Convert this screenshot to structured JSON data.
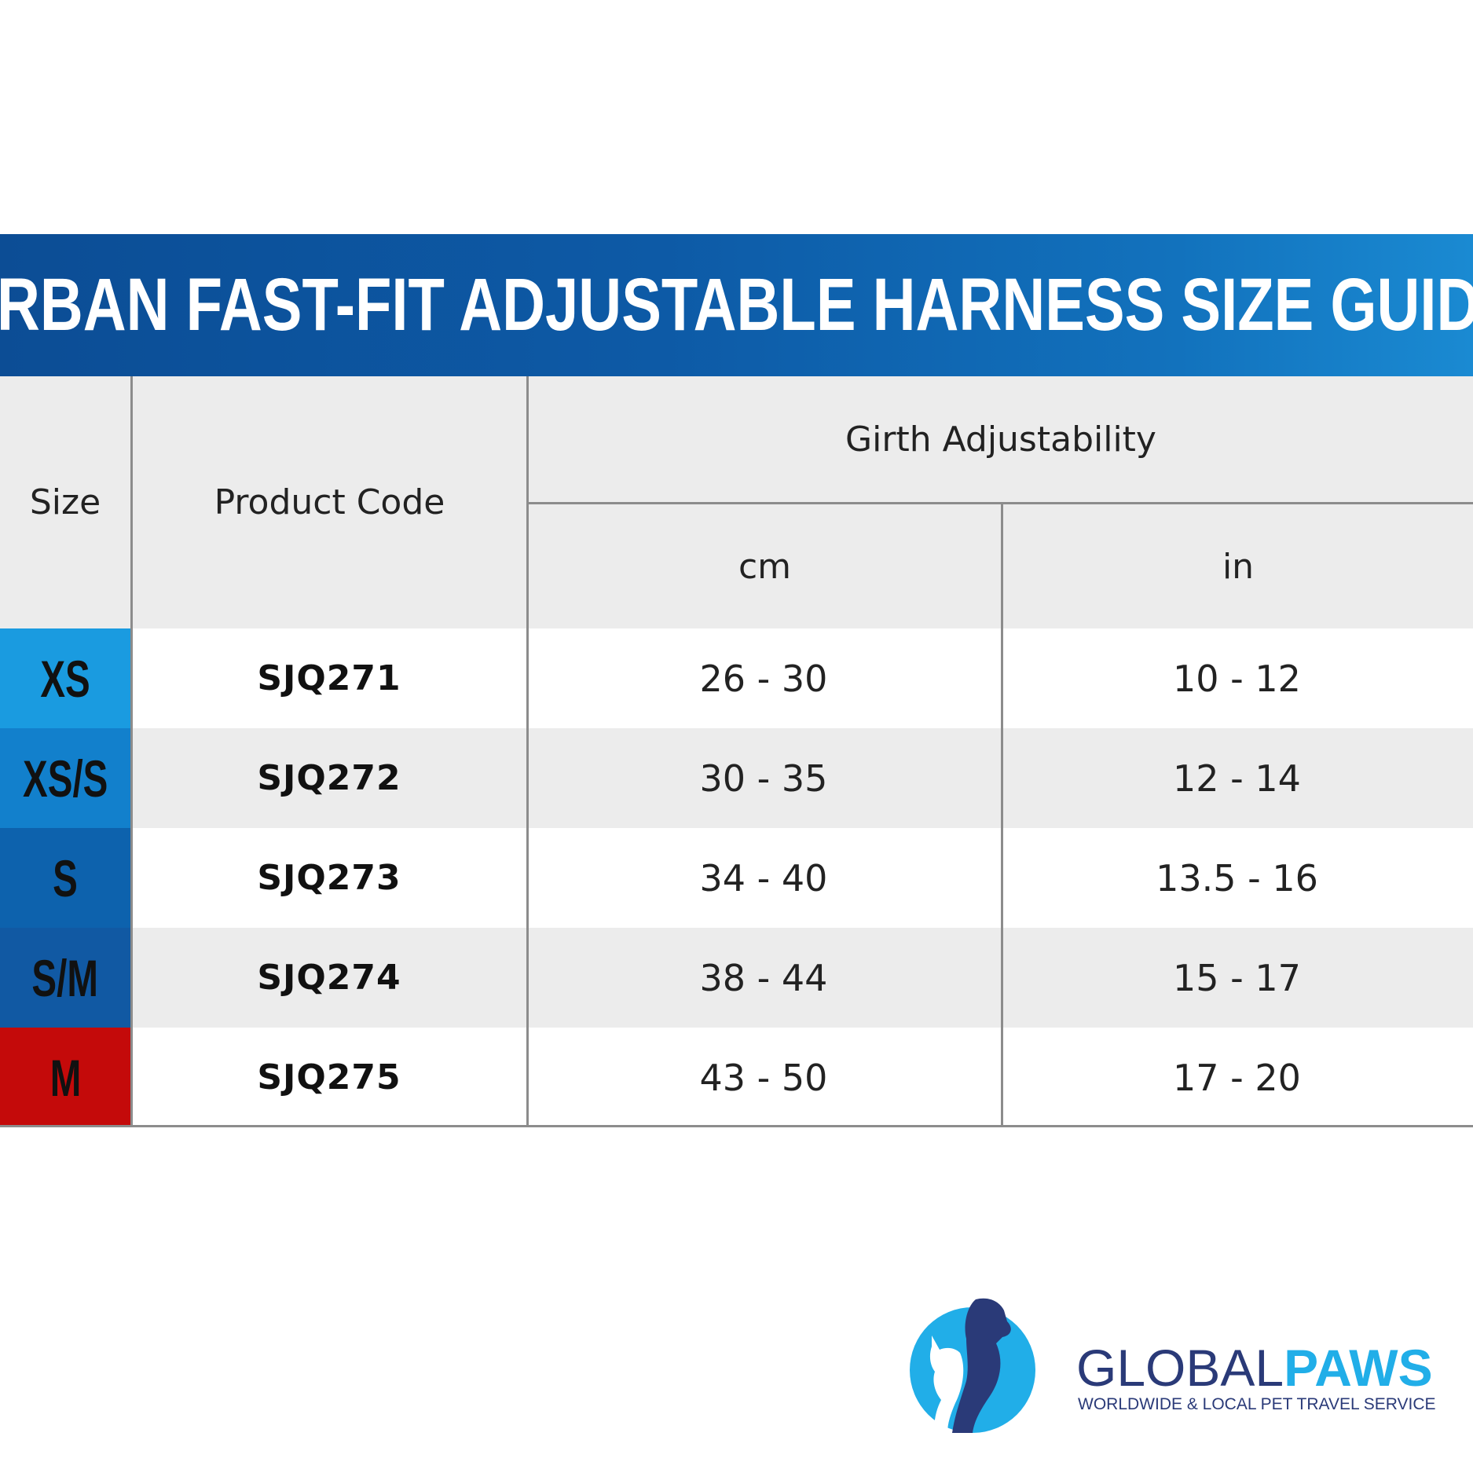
{
  "title": "URBAN FAST-FIT ADJUSTABLE HARNESS SIZE GUIDE",
  "table": {
    "headers": {
      "size": "Size",
      "product_code": "Product Code",
      "girth": "Girth Adjustability",
      "cm": "cm",
      "in": "in"
    },
    "rows": [
      {
        "size": "XS",
        "code": "SJQ271",
        "cm": "26 - 30",
        "in": "10 - 12",
        "color": "#1a9be0"
      },
      {
        "size": "XS/S",
        "code": "SJQ272",
        "cm": "30 - 35",
        "in": "12 - 14",
        "color": "#1280cc"
      },
      {
        "size": "S",
        "code": "SJQ273",
        "cm": "34 - 40",
        "in": "13.5 - 16",
        "color": "#0d62ad"
      },
      {
        "size": "S/M",
        "code": "SJQ274",
        "cm": "38 - 44",
        "in": "15 - 17",
        "color": "#1159a3"
      },
      {
        "size": "M",
        "code": "SJQ275",
        "cm": "43 - 50",
        "in": "17 - 20",
        "color": "#c40a0a"
      }
    ]
  },
  "logo": {
    "word_part1": "GLOBAL",
    "word_part2": "PAWS",
    "tagline": "WORLDWIDE & LOCAL PET TRAVEL SERVICE",
    "icon": "dog-cat-silhouette-icon",
    "colors": {
      "dark": "#2a3a78",
      "light": "#21aee8"
    }
  }
}
